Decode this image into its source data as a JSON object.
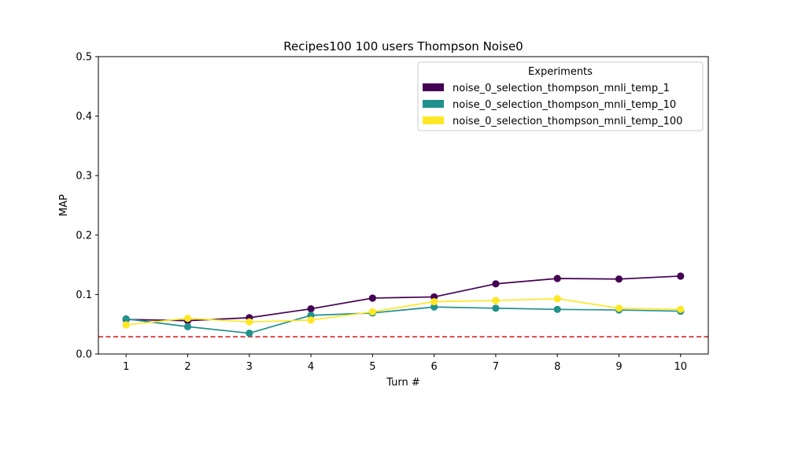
{
  "chart_data": {
    "type": "line",
    "title": "Recipes100 100 users Thompson Noise0",
    "xlabel": "Turn #",
    "ylabel": "MAP",
    "x": [
      1,
      2,
      3,
      4,
      5,
      6,
      7,
      8,
      9,
      10
    ],
    "xlim": [
      0.55,
      10.45
    ],
    "ylim": [
      0,
      0.5
    ],
    "yticks": [
      0.0,
      0.1,
      0.2,
      0.3,
      0.4,
      0.5
    ],
    "ytick_labels": [
      "0.0",
      "0.1",
      "0.2",
      "0.3",
      "0.4",
      "0.5"
    ],
    "xtick_labels": [
      "1",
      "2",
      "3",
      "4",
      "5",
      "6",
      "7",
      "8",
      "9",
      "10"
    ],
    "grid": false,
    "legend": {
      "title": "Experiments",
      "placement": "top-right"
    },
    "series": [
      {
        "name": "noise_0_selection_thompson_mnli_temp_1",
        "color": "#440154",
        "values": [
          0.058,
          0.056,
          0.061,
          0.076,
          0.094,
          0.096,
          0.118,
          0.127,
          0.126,
          0.131
        ]
      },
      {
        "name": "noise_0_selection_thompson_mnli_temp_10",
        "color": "#21918c",
        "values": [
          0.059,
          0.046,
          0.035,
          0.065,
          0.069,
          0.079,
          0.077,
          0.075,
          0.074,
          0.072
        ]
      },
      {
        "name": "noise_0_selection_thompson_mnli_temp_100",
        "color": "#fde725",
        "values": [
          0.049,
          0.06,
          0.054,
          0.057,
          0.071,
          0.088,
          0.09,
          0.093,
          0.077,
          0.075
        ]
      }
    ],
    "reference_line": {
      "y": 0.029,
      "color": "#d62728",
      "style": "dashed"
    }
  }
}
